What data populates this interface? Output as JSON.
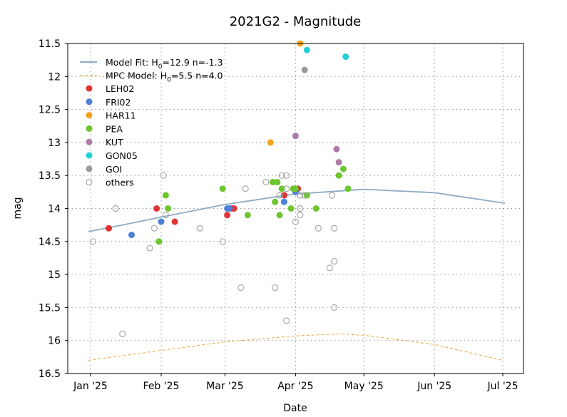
{
  "chart_data": {
    "type": "scatter",
    "title": "2021G2 - Magnitude",
    "xlabel": "Date",
    "ylabel": "mag",
    "xlim": [
      "2024-12-23",
      "2025-07-10"
    ],
    "ylim": [
      16.5,
      11.5
    ],
    "y_inverted": true,
    "grid": true,
    "legend_placement": "top-left",
    "x_ticks": [
      {
        "date": "2025-01-01",
        "label": "Jan '25"
      },
      {
        "date": "2025-02-01",
        "label": "Feb '25"
      },
      {
        "date": "2025-03-01",
        "label": "Mar '25"
      },
      {
        "date": "2025-04-01",
        "label": "Apr '25"
      },
      {
        "date": "2025-05-01",
        "label": "May '25"
      },
      {
        "date": "2025-06-01",
        "label": "Jun '25"
      },
      {
        "date": "2025-07-01",
        "label": "Jul '25"
      }
    ],
    "y_ticks": [
      "11.5",
      "12",
      "12.5",
      "13",
      "13.5",
      "14",
      "14.5",
      "15",
      "15.5",
      "16",
      "16.5"
    ],
    "lines": [
      {
        "name": "Model Fit: H0=12.9 n=-1.3",
        "legend_main": "Model Fit: H",
        "legend_sub": "0",
        "legend_rest": "=12.9 n=-1.3",
        "color": "#8eabc6",
        "style": "solid",
        "points": [
          [
            "2024-12-31",
            14.35
          ],
          [
            "2025-01-15",
            14.25
          ],
          [
            "2025-02-01",
            14.13
          ],
          [
            "2025-03-01",
            13.94
          ],
          [
            "2025-04-01",
            13.78
          ],
          [
            "2025-05-01",
            13.71
          ],
          [
            "2025-06-01",
            13.76
          ],
          [
            "2025-07-02",
            13.92
          ]
        ]
      },
      {
        "name": "MPC Model: H0=5.5 n=4.0",
        "legend_main": "MPC Model: H",
        "legend_sub": "0",
        "legend_rest": "=5.5 n=4.0",
        "color": "#e3a93a",
        "style": "dashed",
        "points": [
          [
            "2024-12-31",
            16.3
          ],
          [
            "2025-02-01",
            16.15
          ],
          [
            "2025-03-01",
            16.02
          ],
          [
            "2025-04-01",
            15.93
          ],
          [
            "2025-04-20",
            15.9
          ],
          [
            "2025-05-01",
            15.92
          ],
          [
            "2025-06-01",
            16.06
          ],
          [
            "2025-07-01",
            16.3
          ]
        ]
      }
    ],
    "series": [
      {
        "name": "LEH02",
        "color": "#e03434",
        "filled": true,
        "points": [
          [
            "2025-01-09",
            14.3
          ],
          [
            "2025-01-30",
            14.0
          ],
          [
            "2025-02-07",
            14.2
          ],
          [
            "2025-03-02",
            14.1
          ],
          [
            "2025-03-04",
            14.0
          ],
          [
            "2025-03-05",
            14.0
          ],
          [
            "2025-03-27",
            13.8
          ],
          [
            "2025-04-02",
            13.7
          ]
        ]
      },
      {
        "name": "FRI02",
        "color": "#4f7fd6",
        "filled": true,
        "points": [
          [
            "2025-01-19",
            14.4
          ],
          [
            "2025-02-01",
            14.2
          ],
          [
            "2025-03-02",
            14.0
          ],
          [
            "2025-03-03",
            14.0
          ],
          [
            "2025-03-27",
            13.9
          ],
          [
            "2025-04-01",
            13.75
          ]
        ]
      },
      {
        "name": "HAR11",
        "color": "#f2a31b",
        "filled": true,
        "points": [
          [
            "2025-03-21",
            13.0
          ],
          [
            "2025-04-03",
            11.5
          ]
        ]
      },
      {
        "name": "PEA",
        "color": "#6cc62e",
        "filled": true,
        "points": [
          [
            "2025-01-31",
            14.5
          ],
          [
            "2025-02-03",
            13.8
          ],
          [
            "2025-02-04",
            14.0
          ],
          [
            "2025-02-28",
            13.7
          ],
          [
            "2025-03-11",
            14.1
          ],
          [
            "2025-03-22",
            13.6
          ],
          [
            "2025-03-24",
            13.6
          ],
          [
            "2025-03-23",
            13.9
          ],
          [
            "2025-03-25",
            14.1
          ],
          [
            "2025-03-26",
            13.7
          ],
          [
            "2025-03-30",
            14.0
          ],
          [
            "2025-03-31",
            13.7
          ],
          [
            "2025-04-01",
            13.7
          ],
          [
            "2025-04-06",
            13.8
          ],
          [
            "2025-04-10",
            14.0
          ],
          [
            "2025-04-20",
            13.5
          ],
          [
            "2025-04-22",
            13.4
          ],
          [
            "2025-04-24",
            13.7
          ]
        ]
      },
      {
        "name": "KUT",
        "color": "#b07aa8",
        "filled": true,
        "points": [
          [
            "2025-04-01",
            12.9
          ],
          [
            "2025-04-19",
            13.1
          ],
          [
            "2025-04-20",
            13.3
          ]
        ]
      },
      {
        "name": "GON05",
        "color": "#22d0d6",
        "filled": true,
        "points": [
          [
            "2025-04-06",
            11.6
          ],
          [
            "2025-04-23",
            11.7
          ]
        ]
      },
      {
        "name": "GOI",
        "color": "#9a9a9a",
        "filled": true,
        "points": [
          [
            "2025-04-05",
            11.9
          ]
        ]
      },
      {
        "name": "others",
        "color": "#a8a8a8",
        "filled": false,
        "points": [
          [
            "2025-01-02",
            14.5
          ],
          [
            "2025-01-12",
            14.0
          ],
          [
            "2025-01-15",
            15.9
          ],
          [
            "2025-01-27",
            14.6
          ],
          [
            "2025-01-29",
            14.3
          ],
          [
            "2025-02-02",
            13.5
          ],
          [
            "2025-02-03",
            14.1
          ],
          [
            "2025-02-18",
            14.3
          ],
          [
            "2025-02-28",
            14.5
          ],
          [
            "2025-03-08",
            15.2
          ],
          [
            "2025-03-10",
            13.7
          ],
          [
            "2025-03-19",
            13.6
          ],
          [
            "2025-03-23",
            15.2
          ],
          [
            "2025-03-25",
            13.8
          ],
          [
            "2025-03-26",
            13.5
          ],
          [
            "2025-03-28",
            15.7
          ],
          [
            "2025-03-28",
            13.5
          ],
          [
            "2025-03-28",
            13.7
          ],
          [
            "2025-04-01",
            14.2
          ],
          [
            "2025-04-03",
            13.8
          ],
          [
            "2025-04-03",
            14.0
          ],
          [
            "2025-04-03",
            14.1
          ],
          [
            "2025-04-05",
            13.8
          ],
          [
            "2025-04-11",
            14.3
          ],
          [
            "2025-04-16",
            14.9
          ],
          [
            "2025-04-17",
            13.8
          ],
          [
            "2025-04-18",
            14.8
          ],
          [
            "2025-04-18",
            14.3
          ],
          [
            "2025-04-18",
            15.5
          ]
        ]
      }
    ]
  }
}
